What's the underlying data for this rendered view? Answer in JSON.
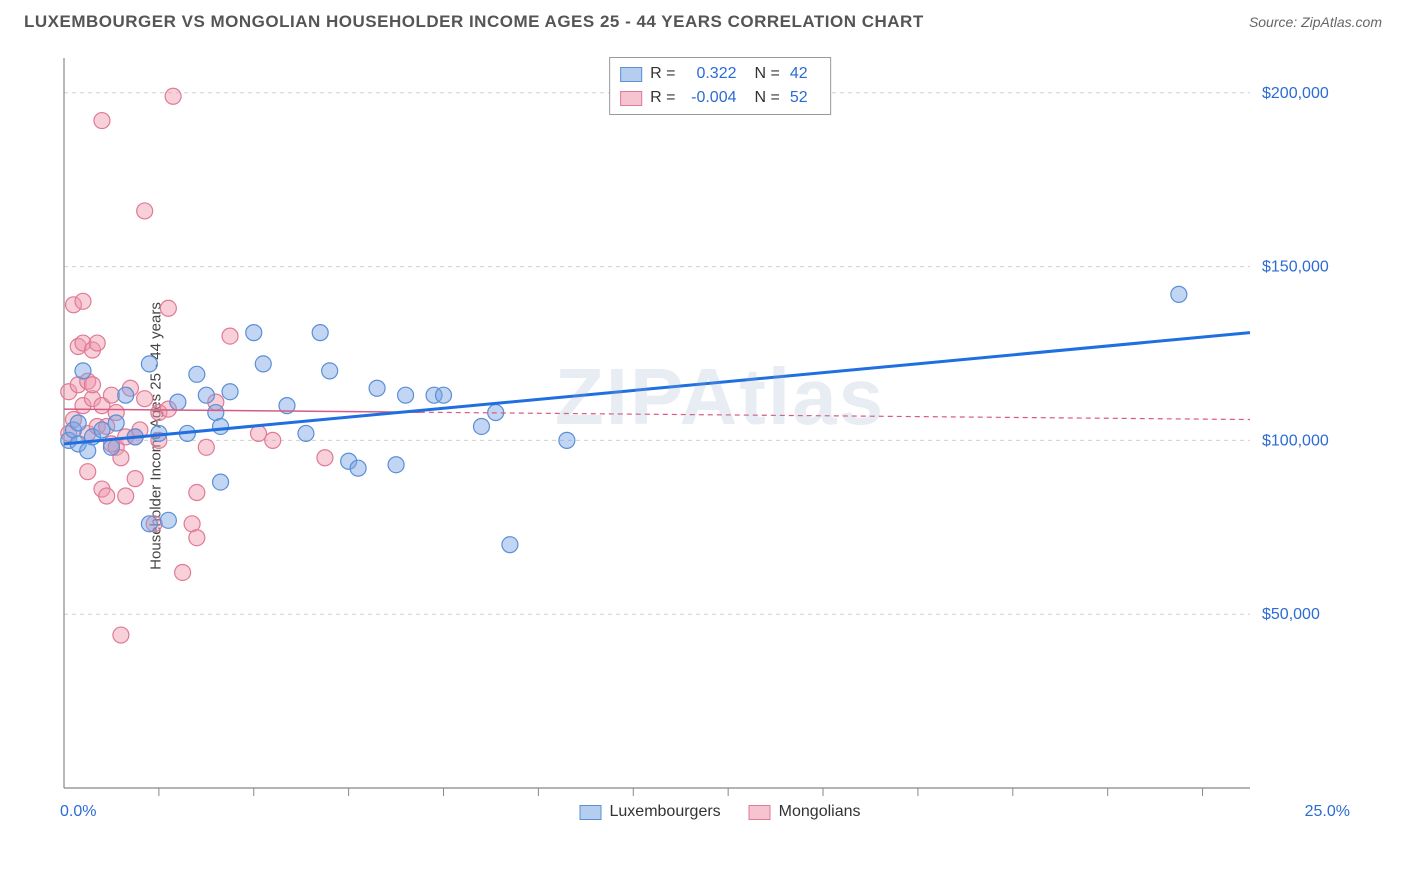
{
  "title": "LUXEMBOURGER VS MONGOLIAN HOUSEHOLDER INCOME AGES 25 - 44 YEARS CORRELATION CHART",
  "source": "Source: ZipAtlas.com",
  "y_axis_label": "Householder Income Ages 25 - 44 years",
  "watermark": "ZIPAtlas",
  "chart": {
    "type": "scatter",
    "xlim": [
      0,
      25
    ],
    "ylim": [
      0,
      210000
    ],
    "x_tick_left": "0.0%",
    "x_tick_right": "25.0%",
    "y_ticks": [
      50000,
      100000,
      150000,
      200000
    ],
    "y_tick_labels": [
      "$50,000",
      "$100,000",
      "$150,000",
      "$200,000"
    ],
    "x_minor_ticks": [
      2,
      4,
      6,
      8,
      10,
      12,
      14,
      16,
      18,
      20,
      22,
      24
    ],
    "grid_color": "#d0d0d0",
    "axis_color": "#888888",
    "background": "#ffffff",
    "marker_radius": 8,
    "marker_stroke_width": 1.2,
    "series": [
      {
        "name": "Luxembourgers",
        "fill": "rgba(120,165,230,0.45)",
        "stroke": "#5a8fd6",
        "swatch_fill": "#b5cef0",
        "swatch_stroke": "#5a8fd6",
        "R": "0.322",
        "N": "42",
        "trend": {
          "x1": 0,
          "y1": 99000,
          "x2": 25,
          "y2": 131000,
          "color": "#1f6fe0",
          "width": 3,
          "dash": "none"
        },
        "extend_to_x": 8,
        "points": [
          [
            0.1,
            100000
          ],
          [
            0.2,
            103000
          ],
          [
            0.3,
            105000
          ],
          [
            0.3,
            99000
          ],
          [
            0.4,
            120000
          ],
          [
            0.5,
            97000
          ],
          [
            0.6,
            101000
          ],
          [
            0.8,
            103000
          ],
          [
            1.0,
            98000
          ],
          [
            1.1,
            105000
          ],
          [
            1.8,
            122000
          ],
          [
            1.3,
            113000
          ],
          [
            1.5,
            101000
          ],
          [
            1.8,
            76000
          ],
          [
            2.0,
            102000
          ],
          [
            2.2,
            77000
          ],
          [
            2.4,
            111000
          ],
          [
            2.8,
            119000
          ],
          [
            2.6,
            102000
          ],
          [
            3.0,
            113000
          ],
          [
            3.2,
            108000
          ],
          [
            3.3,
            104000
          ],
          [
            3.3,
            88000
          ],
          [
            3.5,
            114000
          ],
          [
            4.0,
            131000
          ],
          [
            4.2,
            122000
          ],
          [
            4.7,
            110000
          ],
          [
            5.1,
            102000
          ],
          [
            5.4,
            131000
          ],
          [
            5.6,
            120000
          ],
          [
            6.0,
            94000
          ],
          [
            6.2,
            92000
          ],
          [
            6.6,
            115000
          ],
          [
            7.2,
            113000
          ],
          [
            7.0,
            93000
          ],
          [
            7.8,
            113000
          ],
          [
            8.0,
            113000
          ],
          [
            8.8,
            104000
          ],
          [
            9.1,
            108000
          ],
          [
            9.4,
            70000
          ],
          [
            10.6,
            100000
          ],
          [
            23.5,
            142000
          ]
        ]
      },
      {
        "name": "Mongolians",
        "fill": "rgba(240,150,170,0.45)",
        "stroke": "#e07a96",
        "swatch_fill": "#f5c4d0",
        "swatch_stroke": "#e07a96",
        "R": "-0.004",
        "N": "52",
        "trend": {
          "x1": 0,
          "y1": 109000,
          "x2": 25,
          "y2": 106000,
          "color": "#d85a82",
          "width": 1.5,
          "dash": "5,4"
        },
        "extend_to_x": 7.5,
        "points": [
          [
            0.1,
            102000
          ],
          [
            0.1,
            114000
          ],
          [
            0.2,
            139000
          ],
          [
            0.2,
            106000
          ],
          [
            0.3,
            127000
          ],
          [
            0.3,
            116000
          ],
          [
            0.4,
            140000
          ],
          [
            0.4,
            128000
          ],
          [
            0.4,
            110000
          ],
          [
            0.5,
            91000
          ],
          [
            0.5,
            102000
          ],
          [
            0.5,
            117000
          ],
          [
            0.6,
            112000
          ],
          [
            0.6,
            126000
          ],
          [
            0.6,
            116000
          ],
          [
            0.7,
            104000
          ],
          [
            0.7,
            128000
          ],
          [
            0.8,
            110000
          ],
          [
            0.8,
            86000
          ],
          [
            0.8,
            192000
          ],
          [
            0.9,
            84000
          ],
          [
            0.9,
            104000
          ],
          [
            1.0,
            99000
          ],
          [
            1.0,
            113000
          ],
          [
            1.1,
            98000
          ],
          [
            1.1,
            108000
          ],
          [
            1.2,
            44000
          ],
          [
            1.2,
            95000
          ],
          [
            1.3,
            84000
          ],
          [
            1.3,
            101000
          ],
          [
            1.4,
            115000
          ],
          [
            1.5,
            101000
          ],
          [
            1.5,
            89000
          ],
          [
            1.6,
            103000
          ],
          [
            1.7,
            166000
          ],
          [
            1.7,
            112000
          ],
          [
            1.9,
            76000
          ],
          [
            2.0,
            100000
          ],
          [
            2.0,
            108000
          ],
          [
            2.2,
            138000
          ],
          [
            2.2,
            109000
          ],
          [
            2.3,
            199000
          ],
          [
            2.5,
            62000
          ],
          [
            2.7,
            76000
          ],
          [
            2.8,
            72000
          ],
          [
            2.8,
            85000
          ],
          [
            3.0,
            98000
          ],
          [
            3.2,
            111000
          ],
          [
            3.5,
            130000
          ],
          [
            4.1,
            102000
          ],
          [
            4.4,
            100000
          ],
          [
            5.5,
            95000
          ]
        ]
      }
    ]
  },
  "legend": {
    "series1_label": "Luxembourgers",
    "series2_label": "Mongolians"
  },
  "stats_labels": {
    "R": "R =",
    "N": "N ="
  }
}
